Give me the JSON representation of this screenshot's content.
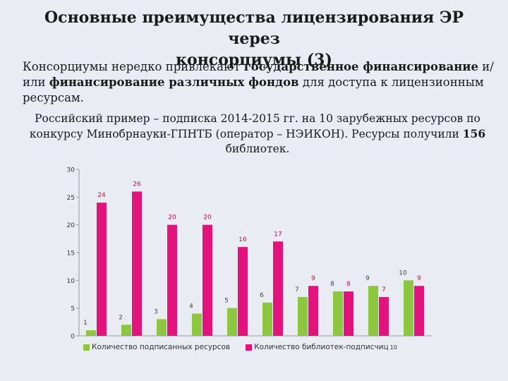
{
  "title_line1": "Основные преимущества лицензирования ЭР через",
  "title_line2": "консорциумы (3)",
  "intro": {
    "t1": "Консорциумы нередко привлекают ",
    "b1": "государственное финансирование",
    "t2": " и/или ",
    "b2": "финансирование различных фондов",
    "t3": " для доступа к лицензионным ресурсам."
  },
  "example": {
    "t1": "Российский пример – подписка 2014-2015 гг. на 10 зарубежных ресурсов по конкурсу Минобрнауки-ГПНТБ (оператор – НЭИКОН). Ресурсы получили ",
    "b1": "156",
    "t2": " библиотек."
  },
  "colors": {
    "green": "#8dc63f",
    "magenta": "#e2137a",
    "label_green": "#404040",
    "label_magenta": "#c0103f"
  },
  "chart_data": {
    "type": "bar",
    "categories": [
      "1",
      "2",
      "3",
      "4",
      "5",
      "6",
      "7",
      "8",
      "9",
      "10"
    ],
    "series": [
      {
        "name": "Количество подписанных ресурсов",
        "values": [
          1,
          2,
          3,
          4,
          5,
          6,
          7,
          8,
          9,
          10
        ]
      },
      {
        "name": "Количество библиотек-подписчиц",
        "values": [
          24,
          26,
          20,
          20,
          16,
          17,
          9,
          8,
          7,
          9
        ]
      }
    ],
    "ylim": [
      0,
      30
    ],
    "yticks": [
      0,
      5,
      10,
      15,
      20,
      25,
      30
    ],
    "legend_position": "bottom",
    "legend_suffix": "10",
    "grid": false
  }
}
